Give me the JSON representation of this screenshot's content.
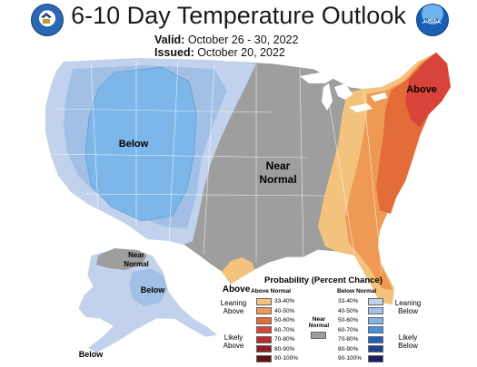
{
  "title": "6-10 Day Temperature Outlook",
  "valid_label": "Valid:",
  "valid_dates": "October 26 - 30, 2022",
  "issued_label": "Issued:",
  "issued_date": "October 20, 2022",
  "logos": {
    "left": "commerce-seal-icon",
    "right": "noaa-logo-icon",
    "right_text": "NOAA"
  },
  "map_labels": {
    "west": "Below",
    "central_line1": "Near",
    "central_line2": "Normal",
    "northeast": "Above",
    "texas": "Above",
    "alaska_near_line1": "Near",
    "alaska_near_line2": "Normal",
    "alaska_below": "Below",
    "alaska_southwest": "Below"
  },
  "legend": {
    "title": "Probability (Percent Chance)",
    "above_header": "Above Normal",
    "below_header": "Below Normal",
    "near_label_line1": "Near",
    "near_label_line2": "Normal",
    "leaning_above_1": "Leaning",
    "leaning_above_2": "Above",
    "likely_above_1": "Likely",
    "likely_above_2": "Above",
    "leaning_below_1": "Leaning",
    "leaning_below_2": "Below",
    "likely_below_1": "Likely",
    "likely_below_2": "Below",
    "above": [
      {
        "label": "33-40%",
        "color": "#f3c27c"
      },
      {
        "label": "40-50%",
        "color": "#ee9a55"
      },
      {
        "label": "50-60%",
        "color": "#e36c39"
      },
      {
        "label": "60-70%",
        "color": "#d8443a"
      },
      {
        "label": "70-80%",
        "color": "#bb2a2e"
      },
      {
        "label": "80-90%",
        "color": "#8d1d22"
      },
      {
        "label": "90-100%",
        "color": "#5e1319"
      }
    ],
    "below": [
      {
        "label": "33-40%",
        "color": "#c3d2ec"
      },
      {
        "label": "40-50%",
        "color": "#a2c0e6"
      },
      {
        "label": "50-60%",
        "color": "#7db7ea"
      },
      {
        "label": "60-70%",
        "color": "#4a8fd9"
      },
      {
        "label": "70-80%",
        "color": "#1f5fbb"
      },
      {
        "label": "80-90%",
        "color": "#213f8f"
      },
      {
        "label": "90-100%",
        "color": "#1b1f64"
      }
    ],
    "near_color": "#9e9e9e"
  }
}
